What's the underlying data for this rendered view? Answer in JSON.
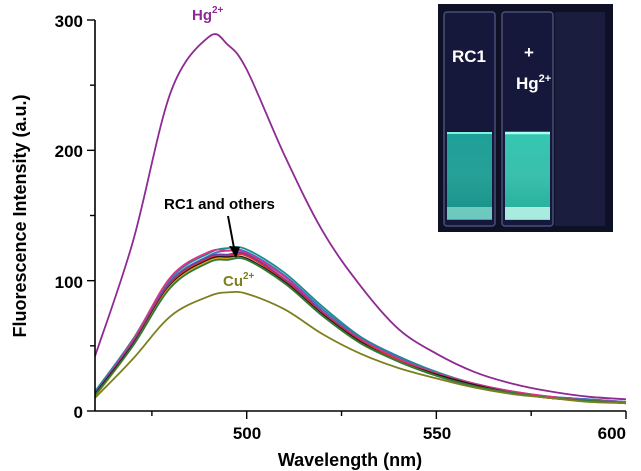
{
  "chart_data": {
    "type": "line",
    "title": "",
    "xlabel": "Wavelength (nm)",
    "ylabel": "Fluorescence Intensity (a.u.)",
    "xlim": [
      460,
      600
    ],
    "ylim": [
      0,
      300
    ],
    "x_major_ticks": [
      500,
      550,
      600
    ],
    "y_major_ticks": [
      0,
      100,
      200,
      300
    ],
    "grid": false,
    "legend": "none",
    "x": [
      460,
      470,
      480,
      490,
      495,
      500,
      510,
      520,
      530,
      540,
      550,
      560,
      570,
      580,
      590,
      600
    ],
    "series": [
      {
        "name": "Hg2+",
        "color": "#8e2a93",
        "values": [
          42,
          130,
          245,
          287,
          281,
          262,
          196,
          138,
          96,
          63,
          44,
          30,
          21,
          15,
          11,
          9
        ]
      },
      {
        "color": "#1e8c8c",
        "values": [
          15,
          55,
          102,
          121,
          125,
          124,
          106,
          80,
          57,
          42,
          30,
          21,
          15,
          11,
          9,
          7
        ]
      },
      {
        "color": "#3f6fbf",
        "values": [
          14,
          54,
          100,
          119,
          123,
          122,
          104,
          78,
          56,
          41,
          29,
          21,
          15,
          11,
          9,
          7
        ]
      },
      {
        "color": "#e0328a",
        "values": [
          13,
          54,
          103,
          122,
          123,
          121,
          103,
          76,
          55,
          40,
          29,
          21,
          15,
          11,
          8,
          7
        ]
      },
      {
        "color": "#6d3da8",
        "values": [
          13,
          52,
          99,
          118,
          120,
          120,
          101,
          76,
          54,
          39,
          28,
          20,
          14,
          10,
          8,
          6
        ]
      },
      {
        "color": "#e03030",
        "values": [
          12,
          51,
          98,
          117,
          119,
          119,
          100,
          75,
          54,
          39,
          28,
          20,
          14,
          10,
          8,
          6
        ]
      },
      {
        "color": "#1a1a1a",
        "values": [
          13,
          51,
          97,
          116,
          118,
          117,
          99,
          74,
          53,
          38,
          28,
          20,
          14,
          10,
          8,
          6
        ]
      },
      {
        "color": "#e6a020",
        "values": [
          11,
          50,
          96,
          115,
          117,
          116,
          98,
          73,
          52,
          38,
          27,
          19,
          14,
          10,
          8,
          6
        ]
      },
      {
        "color": "#2f7a3a",
        "values": [
          12,
          50,
          95,
          114,
          116,
          116,
          98,
          73,
          52,
          38,
          27,
          19,
          14,
          10,
          8,
          6
        ]
      },
      {
        "name": "Cu2+",
        "color": "#7c7f1e",
        "values": [
          10,
          40,
          73,
          88,
          91,
          90,
          78,
          59,
          44,
          33,
          25,
          18,
          13,
          10,
          7,
          6
        ]
      }
    ],
    "annotations": [
      {
        "base": "Hg",
        "sup": "2+",
        "color": "#8e2a93"
      },
      {
        "text": "RC1 and others",
        "color": "#000000",
        "arrow": true
      },
      {
        "base": "Cu",
        "sup": "2+",
        "color": "#7c7f1e"
      }
    ],
    "inset": {
      "left_label": "RC1",
      "right_plus": "+",
      "right_base": "Hg",
      "right_sup": "2+"
    }
  }
}
